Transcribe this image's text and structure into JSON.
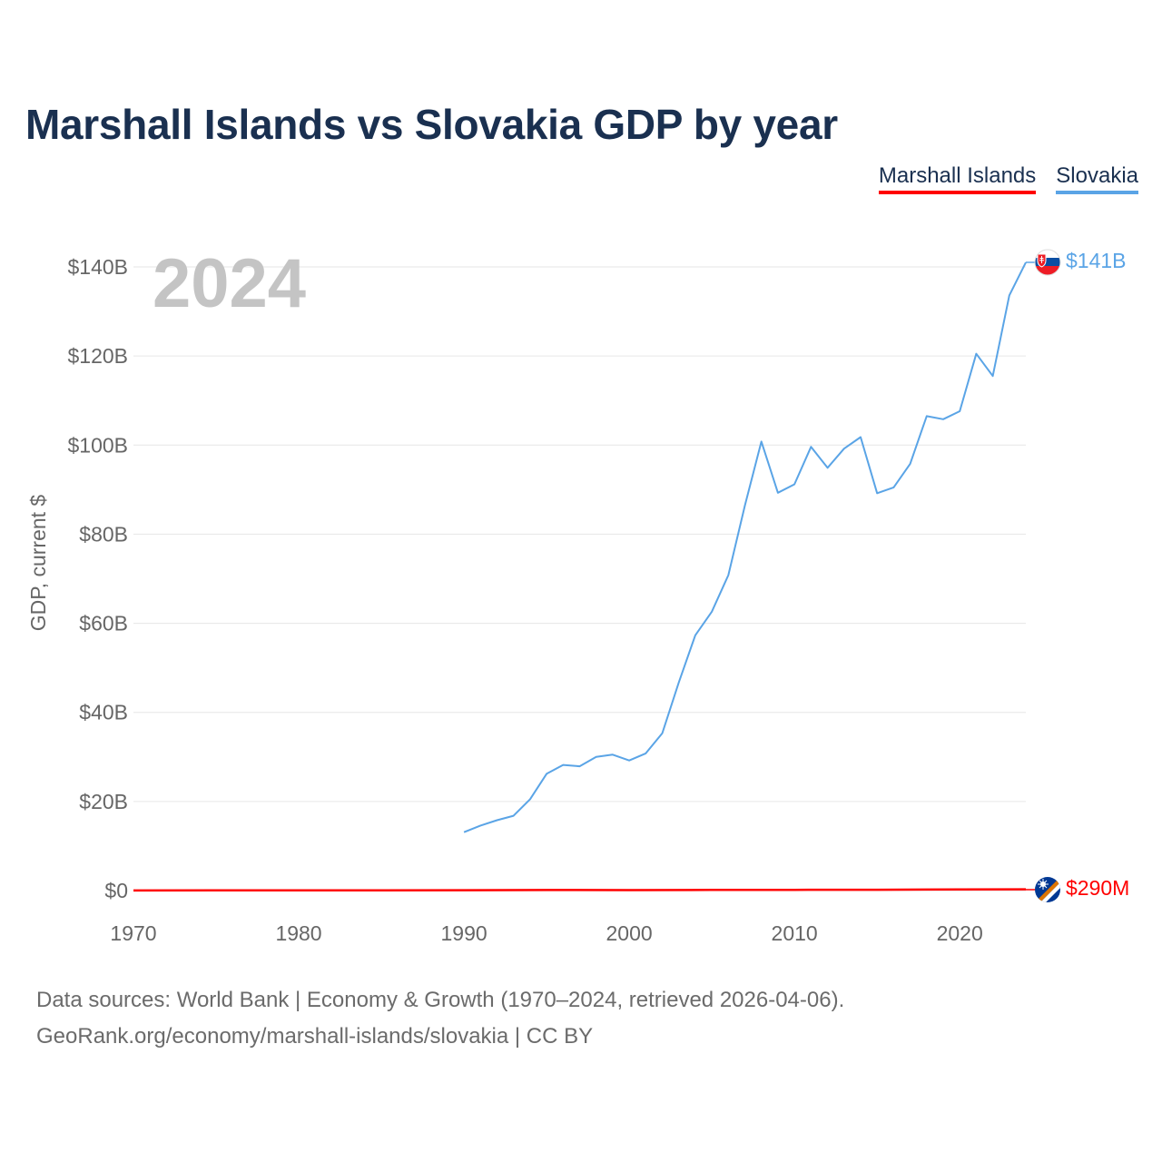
{
  "title": "Marshall Islands vs Slovakia GDP by year",
  "year_label": "2024",
  "footer": {
    "line1": "Data sources: World Bank | Economy & Growth (1970–2024, retrieved 2026-04-06).",
    "line2": "GeoRank.org/economy/marshall-islands/slovakia | CC BY"
  },
  "colors": {
    "marshall": "#ff0000",
    "slovakia": "#5aa4e6",
    "text": "#1a3050",
    "axis_text": "#666666",
    "grid": "#e6e6e6"
  },
  "chart_data": {
    "type": "line",
    "title": "Marshall Islands vs Slovakia GDP by year",
    "xlabel": "",
    "ylabel": "GDP, current $",
    "xlim": [
      1970,
      2024
    ],
    "ylim": [
      0,
      140
    ],
    "y_unit": "billion USD",
    "x_ticks": [
      1970,
      1980,
      1990,
      2000,
      2010,
      2020
    ],
    "y_ticks": [
      0,
      20,
      40,
      60,
      80,
      100,
      120,
      140
    ],
    "y_tick_labels": [
      "$0",
      "$20B",
      "$40B",
      "$60B",
      "$80B",
      "$100B",
      "$120B",
      "$140B"
    ],
    "legend_position": "top-right",
    "series": [
      {
        "name": "Marshall Islands",
        "color": "#ff0000",
        "end_label": "$290M",
        "x": [
          1970,
          1975,
          1980,
          1985,
          1990,
          1995,
          2000,
          2005,
          2010,
          2015,
          2020,
          2024
        ],
        "values": [
          0.03,
          0.04,
          0.05,
          0.07,
          0.08,
          0.12,
          0.11,
          0.14,
          0.17,
          0.18,
          0.24,
          0.29
        ]
      },
      {
        "name": "Slovakia",
        "color": "#5aa4e6",
        "end_label": "$141B",
        "x": [
          1990,
          1991,
          1992,
          1993,
          1994,
          1995,
          1996,
          1997,
          1998,
          1999,
          2000,
          2001,
          2002,
          2003,
          2004,
          2005,
          2006,
          2007,
          2008,
          2009,
          2010,
          2011,
          2012,
          2013,
          2014,
          2015,
          2016,
          2017,
          2018,
          2019,
          2020,
          2021,
          2022,
          2023,
          2024
        ],
        "values": [
          13.1,
          14.6,
          15.8,
          16.8,
          20.5,
          26.2,
          28.2,
          27.9,
          30.0,
          30.5,
          29.2,
          30.8,
          35.3,
          46.7,
          57.3,
          62.6,
          70.8,
          86.4,
          100.8,
          89.3,
          91.2,
          99.6,
          94.9,
          99.2,
          101.8,
          89.2,
          90.5,
          95.8,
          106.5,
          105.8,
          107.6,
          120.5,
          115.5,
          133.6,
          141.0
        ]
      }
    ]
  }
}
